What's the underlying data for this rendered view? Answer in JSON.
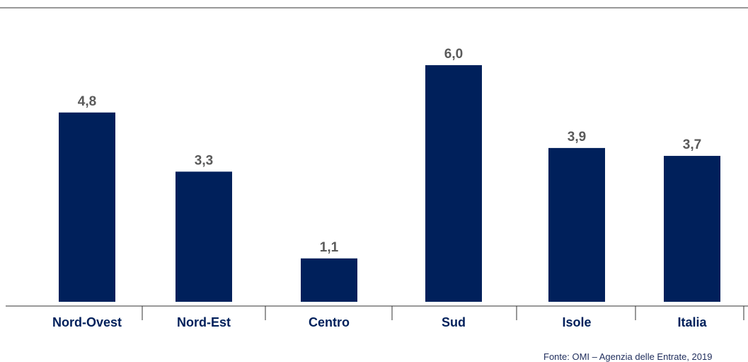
{
  "chart_data": {
    "type": "bar",
    "categories": [
      "Nord-Ovest",
      "Nord-Est",
      "Centro",
      "Sud",
      "Isole",
      "Italia"
    ],
    "values": [
      4.8,
      3.3,
      1.1,
      6.0,
      3.9,
      3.7
    ],
    "value_labels": [
      "4,8",
      "3,3",
      "1,1",
      "6,0",
      "3,9",
      "3,7"
    ],
    "ylim": [
      0,
      6.0
    ],
    "grid": false,
    "bar_color": "#00205b",
    "value_label_color": "#5a5a5a",
    "category_label_color": "#00205b",
    "axis_color": "#333333"
  },
  "source": "Fonte: OMI – Agenzia delle Entrate, 2019"
}
